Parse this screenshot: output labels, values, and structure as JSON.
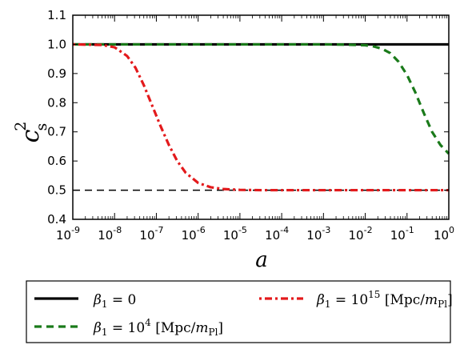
{
  "chart_data": {
    "type": "line",
    "xlabel": "a",
    "ylabel": "c",
    "ylabel_sup": "2",
    "ylabel_sub": "s",
    "xscale": "log",
    "xlim_exponents": [
      -9,
      0
    ],
    "ylim": [
      0.4,
      1.1
    ],
    "x_ticks": [
      {
        "base": "10",
        "exp": "-9"
      },
      {
        "base": "10",
        "exp": "-8"
      },
      {
        "base": "10",
        "exp": "-7"
      },
      {
        "base": "10",
        "exp": "-6"
      },
      {
        "base": "10",
        "exp": "-5"
      },
      {
        "base": "10",
        "exp": "-4"
      },
      {
        "base": "10",
        "exp": "-3"
      },
      {
        "base": "10",
        "exp": "-2"
      },
      {
        "base": "10",
        "exp": "-1"
      },
      {
        "base": "10",
        "exp": "0"
      }
    ],
    "y_ticks": [
      "0.4",
      "0.5",
      "0.6",
      "0.7",
      "0.8",
      "0.9",
      "1.0",
      "1.1"
    ],
    "y_tick_values": [
      0.4,
      0.5,
      0.6,
      0.7,
      0.8,
      0.9,
      1.0,
      1.1
    ],
    "reference_line": {
      "y": 0.5,
      "style": "dashed",
      "color": "#000000"
    },
    "series": [
      {
        "name": "β1 = 0",
        "color": "#000000",
        "style": "solid",
        "log10_x": [
          -9,
          0
        ],
        "y": [
          1.0,
          1.0
        ]
      },
      {
        "name": "β1 = 10^4 [Mpc/mPl]",
        "color": "#1a7a1a",
        "style": "dashed",
        "log10_x": [
          -9,
          -3,
          -2.5,
          -2,
          -1.8,
          -1.6,
          -1.4,
          -1.2,
          -1.0,
          -0.8,
          -0.6,
          -0.4,
          -0.2,
          0
        ],
        "y": [
          1.0,
          1.0,
          0.999,
          0.997,
          0.993,
          0.985,
          0.97,
          0.94,
          0.895,
          0.835,
          0.765,
          0.7,
          0.655,
          0.625
        ]
      },
      {
        "name": "β1 = 10^15 [Mpc/mPl]",
        "color": "#e31a1c",
        "style": "dashdot",
        "log10_x": [
          -9,
          -8.3,
          -8,
          -7.7,
          -7.5,
          -7.3,
          -7.1,
          -6.9,
          -6.7,
          -6.5,
          -6.3,
          -6.0,
          -5.7,
          -5.4,
          -5.0,
          -4.5,
          0
        ],
        "y": [
          1.0,
          0.998,
          0.99,
          0.96,
          0.92,
          0.86,
          0.79,
          0.72,
          0.655,
          0.6,
          0.56,
          0.525,
          0.51,
          0.504,
          0.501,
          0.5,
          0.5
        ]
      }
    ],
    "legend": {
      "placement": "below",
      "entries": [
        {
          "series": 0,
          "prefix": "β",
          "sub": "1",
          "rest": " = 0"
        },
        {
          "series": 1,
          "prefix": "β",
          "sub": "1",
          "rest": " = 10",
          "sup": "4",
          "unit_a": " [Mpc/",
          "unit_m": "m",
          "unit_sub": "Pl",
          "unit_b": "]"
        },
        {
          "series": 2,
          "prefix": "β",
          "sub": "1",
          "rest": " = 10",
          "sup": "15",
          "unit_a": " [Mpc/",
          "unit_m": "m",
          "unit_sub": "Pl",
          "unit_b": "]"
        }
      ]
    }
  }
}
